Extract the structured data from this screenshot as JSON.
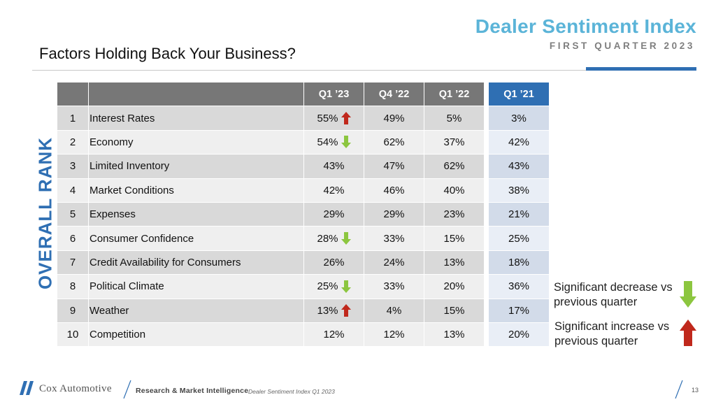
{
  "header": {
    "brand_title": "Dealer Sentiment Index",
    "brand_subtitle": "FIRST QUARTER 2023",
    "page_title": "Factors Holding Back Your Business?"
  },
  "side_label": "OVERALL RANK",
  "table": {
    "columns": [
      "",
      "",
      "Q1 ’23",
      "Q4 ’22",
      "Q1 ’22"
    ],
    "q1_21_header": "Q1 ’21",
    "rows": [
      {
        "rank": "1",
        "factor": "Interest Rates",
        "q1_23": "55%",
        "q1_23_change": "increase",
        "q4_22": "49%",
        "q1_22": "5%",
        "q1_21": "3%"
      },
      {
        "rank": "2",
        "factor": "Economy",
        "q1_23": "54%",
        "q1_23_change": "decrease",
        "q4_22": "62%",
        "q1_22": "37%",
        "q1_21": "42%"
      },
      {
        "rank": "3",
        "factor": "Limited Inventory",
        "q1_23": "43%",
        "q1_23_change": "",
        "q4_22": "47%",
        "q1_22": "62%",
        "q1_21": "43%"
      },
      {
        "rank": "4",
        "factor": "Market Conditions",
        "q1_23": "42%",
        "q1_23_change": "",
        "q4_22": "46%",
        "q1_22": "40%",
        "q1_21": "38%"
      },
      {
        "rank": "5",
        "factor": "Expenses",
        "q1_23": "29%",
        "q1_23_change": "",
        "q4_22": "29%",
        "q1_22": "23%",
        "q1_21": "21%"
      },
      {
        "rank": "6",
        "factor": "Consumer Confidence",
        "q1_23": "28%",
        "q1_23_change": "decrease",
        "q4_22": "33%",
        "q1_22": "15%",
        "q1_21": "25%"
      },
      {
        "rank": "7",
        "factor": "Credit Availability for Consumers",
        "q1_23": "26%",
        "q1_23_change": "",
        "q4_22": "24%",
        "q1_22": "13%",
        "q1_21": "18%"
      },
      {
        "rank": "8",
        "factor": "Political Climate",
        "q1_23": "25%",
        "q1_23_change": "decrease",
        "q4_22": "33%",
        "q1_22": "20%",
        "q1_21": "36%"
      },
      {
        "rank": "9",
        "factor": "Weather",
        "q1_23": "13%",
        "q1_23_change": "increase",
        "q4_22": "4%",
        "q1_22": "15%",
        "q1_21": "17%"
      },
      {
        "rank": "10",
        "factor": "Competition",
        "q1_23": "12%",
        "q1_23_change": "",
        "q4_22": "12%",
        "q1_22": "13%",
        "q1_21": "20%"
      }
    ]
  },
  "legend": {
    "decrease_text": "Significant decrease vs previous quarter",
    "increase_text": "Significant increase vs previous quarter"
  },
  "colors": {
    "accent_blue": "#2f6fb3",
    "title_blue": "#5bb4d8",
    "increase_red": "#c0281c",
    "decrease_green": "#8cc63f",
    "header_gray": "#777777"
  },
  "footer": {
    "brand": "Cox Automotive",
    "division": "Research & Market Intelligence",
    "doc_name": "Dealer Sentiment Index Q1 2023",
    "page_number": "13"
  }
}
